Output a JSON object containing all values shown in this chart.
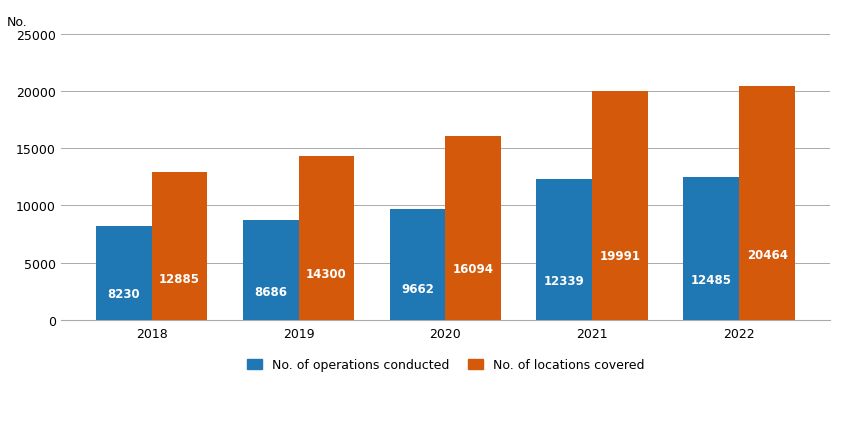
{
  "years": [
    "2018",
    "2019",
    "2020",
    "2021",
    "2022"
  ],
  "operations": [
    8230,
    8686,
    9662,
    12339,
    12485
  ],
  "locations": [
    12885,
    14300,
    16094,
    19991,
    20464
  ],
  "bar_color_operations": "#1F77B4",
  "bar_color_locations": "#D4590A",
  "ylabel": "No.",
  "ylim": [
    0,
    25000
  ],
  "yticks": [
    0,
    5000,
    10000,
    15000,
    20000,
    25000
  ],
  "legend_operations": "No. of operations conducted",
  "legend_locations": "No. of locations covered",
  "bar_width": 0.38,
  "label_fontsize": 8.5,
  "axis_fontsize": 9,
  "legend_fontsize": 9,
  "background_color": "#ffffff",
  "grid_color": "#aaaaaa"
}
